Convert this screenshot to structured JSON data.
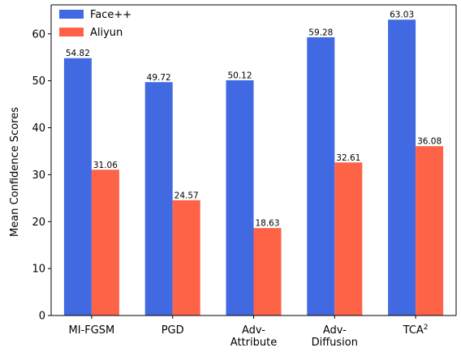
{
  "chart_data": {
    "type": "bar",
    "categories": [
      [
        "MI-FGSM"
      ],
      [
        "PGD"
      ],
      [
        "Adv-",
        "Attribute"
      ],
      [
        "Adv-",
        "Diffusion"
      ],
      [
        "TCA",
        "2"
      ]
    ],
    "series": [
      {
        "name": "Face++",
        "color": "#4169E1",
        "values": [
          54.82,
          49.72,
          50.12,
          59.28,
          63.03
        ],
        "value_labels": [
          "54.82",
          "49.72",
          "50.12",
          "59.28",
          "63.03"
        ]
      },
      {
        "name": "Aliyun",
        "color": "#FF6347",
        "values": [
          31.06,
          24.57,
          18.63,
          32.61,
          36.08
        ],
        "value_labels": [
          "31.06",
          "24.57",
          "18.63",
          "32.61",
          "36.08"
        ]
      }
    ],
    "title": "",
    "xlabel": "",
    "ylabel": "Mean Confidence Scores",
    "ylim": [
      0,
      66.18
    ],
    "yticks": [
      0,
      10,
      20,
      30,
      40,
      50,
      60
    ],
    "grid": false,
    "legend": "top-left"
  }
}
